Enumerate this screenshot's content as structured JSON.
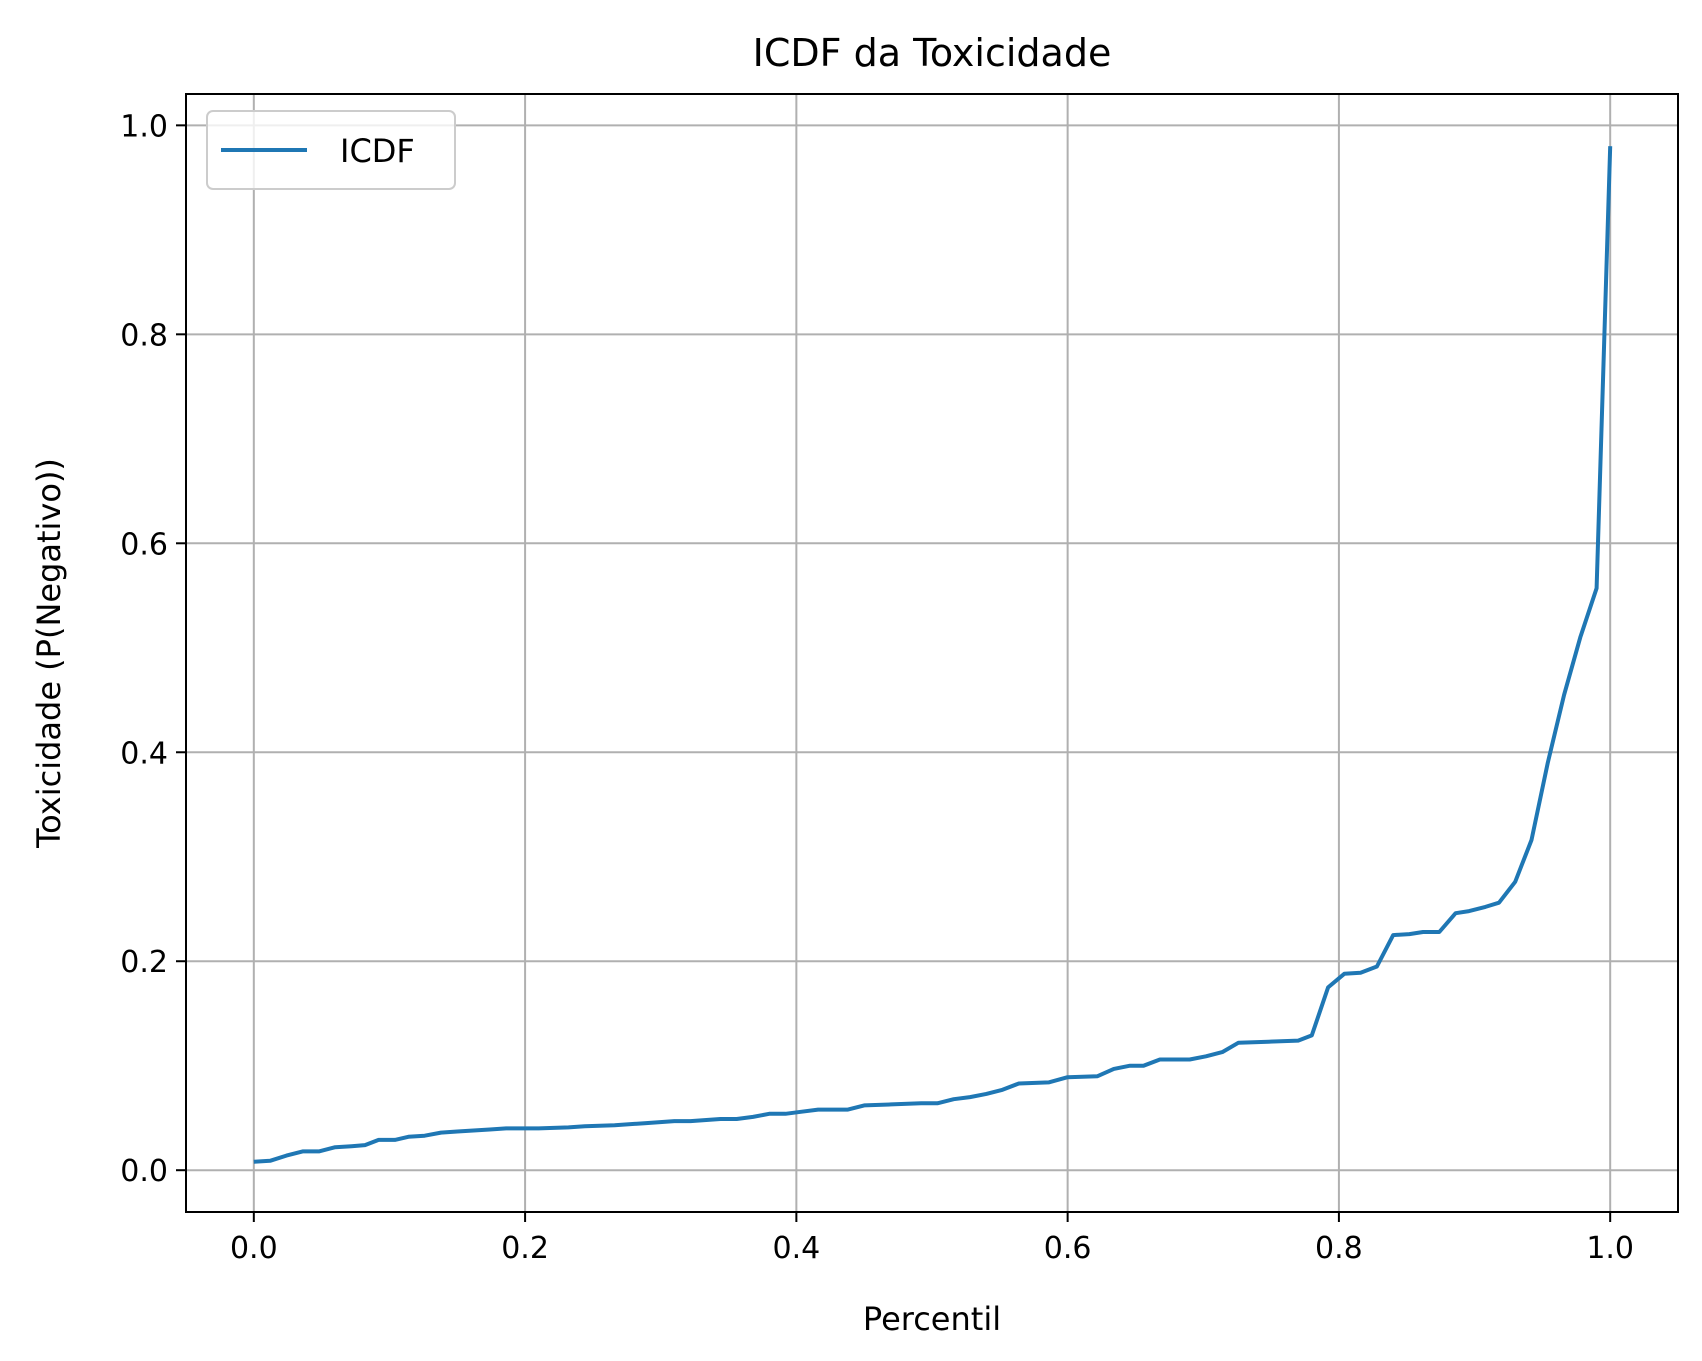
{
  "chart_data": {
    "type": "line",
    "title": "ICDF da Toxicidade",
    "xlabel": "Percentil",
    "ylabel": "Toxicidade (P(Negativo))",
    "xlim": [
      -0.05,
      1.05
    ],
    "ylim": [
      -0.04,
      1.03
    ],
    "x_ticks": [
      0.0,
      0.2,
      0.4,
      0.6,
      0.8,
      1.0
    ],
    "x_tick_labels": [
      "0.0",
      "0.2",
      "0.4",
      "0.6",
      "0.8",
      "1.0"
    ],
    "y_ticks": [
      0.0,
      0.2,
      0.4,
      0.6,
      0.8,
      1.0
    ],
    "y_tick_labels": [
      "0.0",
      "0.2",
      "0.4",
      "0.6",
      "0.8",
      "1.0"
    ],
    "grid": true,
    "legend_position": "upper-left",
    "series": [
      {
        "name": "ICDF",
        "color": "#1f77b4",
        "x": [
          0.0,
          0.012,
          0.024,
          0.036,
          0.048,
          0.06,
          0.072,
          0.082,
          0.092,
          0.104,
          0.114,
          0.126,
          0.138,
          0.15,
          0.162,
          0.174,
          0.186,
          0.21,
          0.232,
          0.244,
          0.266,
          0.288,
          0.31,
          0.322,
          0.344,
          0.356,
          0.368,
          0.38,
          0.392,
          0.404,
          0.416,
          0.438,
          0.45,
          0.47,
          0.492,
          0.504,
          0.516,
          0.528,
          0.54,
          0.552,
          0.564,
          0.586,
          0.6,
          0.622,
          0.634,
          0.646,
          0.656,
          0.668,
          0.69,
          0.702,
          0.714,
          0.726,
          0.748,
          0.77,
          0.78,
          0.792,
          0.804,
          0.816,
          0.828,
          0.84,
          0.852,
          0.862,
          0.874,
          0.886,
          0.896,
          0.908,
          0.918,
          0.93,
          0.942,
          0.954,
          0.966,
          0.978,
          0.99,
          1.0
        ],
        "y": [
          0.008,
          0.009,
          0.014,
          0.018,
          0.018,
          0.022,
          0.023,
          0.024,
          0.029,
          0.029,
          0.032,
          0.033,
          0.036,
          0.037,
          0.038,
          0.039,
          0.04,
          0.04,
          0.041,
          0.042,
          0.043,
          0.045,
          0.047,
          0.047,
          0.049,
          0.049,
          0.051,
          0.054,
          0.054,
          0.056,
          0.058,
          0.058,
          0.062,
          0.063,
          0.064,
          0.064,
          0.068,
          0.07,
          0.073,
          0.077,
          0.083,
          0.084,
          0.089,
          0.09,
          0.097,
          0.1,
          0.1,
          0.106,
          0.106,
          0.109,
          0.113,
          0.122,
          0.123,
          0.124,
          0.129,
          0.175,
          0.188,
          0.189,
          0.195,
          0.225,
          0.226,
          0.228,
          0.228,
          0.246,
          0.248,
          0.252,
          0.256,
          0.276,
          0.316,
          0.39,
          0.455,
          0.51,
          0.557,
          0.98
        ]
      }
    ]
  }
}
